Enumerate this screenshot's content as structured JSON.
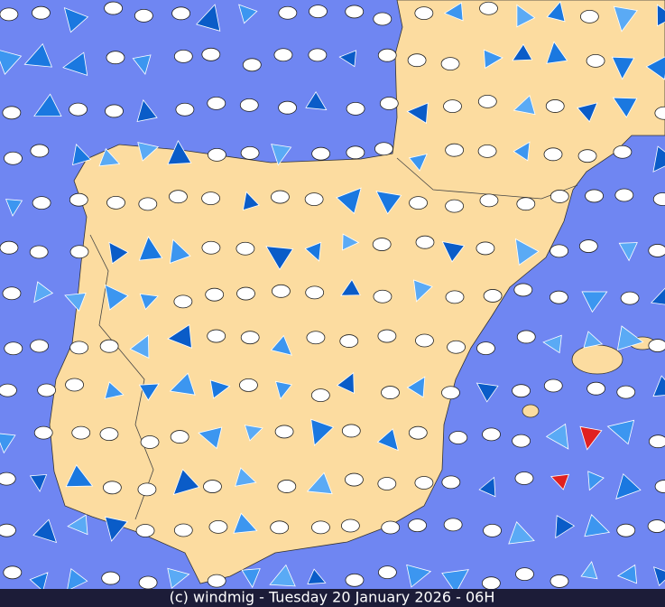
{
  "footer": {
    "caption": "(c) windmig - Tuesday 20 January 2026 - 06H"
  }
}
